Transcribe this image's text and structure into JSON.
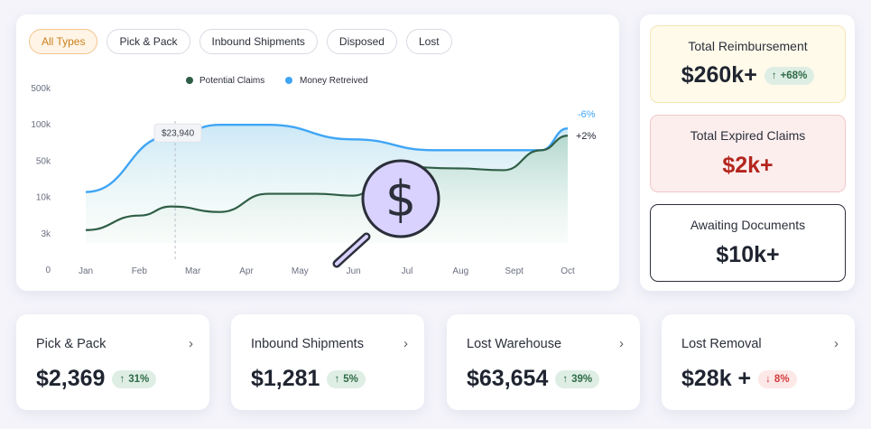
{
  "filters": [
    "All Types",
    "Pick & Pack",
    "Inbound Shipments",
    "Disposed",
    "Lost"
  ],
  "chart_data": {
    "type": "line",
    "categories": [
      "Jan",
      "Feb",
      "Mar",
      "Apr",
      "May",
      "Jun",
      "Jul",
      "Aug",
      "Sept",
      "Oct"
    ],
    "y_ticks": [
      "500k",
      "100k",
      "50k",
      "10k",
      "3k",
      "0"
    ],
    "series": [
      {
        "name": "Potential Claims",
        "color": "#2f5e46",
        "x": [
          0,
          1,
          1.6,
          2.5,
          3.4,
          4.3,
          5.0,
          5.8,
          6.9,
          7.8,
          8.5,
          9.0
        ],
        "y": [
          1.1,
          1.5,
          1.75,
          1.6,
          2.1,
          2.1,
          2.05,
          2.85,
          2.8,
          2.75,
          3.3,
          3.7
        ]
      },
      {
        "name": "Money Retreived",
        "color": "#3fa5f5",
        "x": [
          0,
          1.6,
          2.5,
          3.4,
          5.0,
          6.5,
          7.3,
          8.5,
          9.0
        ],
        "y": [
          2.15,
          3.7,
          4.0,
          4.0,
          3.6,
          3.3,
          3.3,
          3.3,
          3.9
        ]
      }
    ],
    "tooltip": {
      "category": "Mar",
      "label": "$23,940"
    },
    "end_labels": {
      "money": "-6%",
      "potential": "+2%"
    }
  },
  "summary": {
    "reimbursement": {
      "label": "Total Reimbursement",
      "value": "$260k+",
      "change": "+68%"
    },
    "expired": {
      "label": "Total Expired Claims",
      "value": "$2k+"
    },
    "awaiting": {
      "label": "Awaiting Documents",
      "value": "$10k+"
    }
  },
  "cards": {
    "pick": {
      "title": "Pick & Pack",
      "amount": "$2,369",
      "change": "31%"
    },
    "inbound": {
      "title": "Inbound Shipments",
      "amount": "$1,281",
      "change": "5%"
    },
    "lostwh": {
      "title": "Lost Warehouse",
      "amount": "$63,654",
      "change": "39%"
    },
    "lostrem": {
      "title": "Lost Removal",
      "amount": "$28k +",
      "change": "8%"
    }
  },
  "colors": {
    "accent_orange": "#c9821f",
    "positive": "#2d6b47",
    "negative": "#d33b3b",
    "expired_value": "#b3261e",
    "magnifier_fill": "#d9d2ff"
  }
}
